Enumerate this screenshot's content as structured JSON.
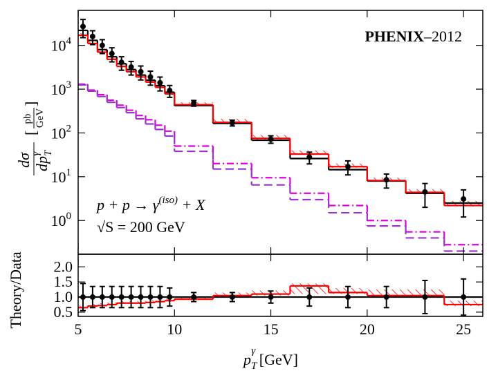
{
  "chart_data": [
    {
      "type": "step",
      "ylog": true,
      "title": {
        "bold": "PHENIX",
        "rest": "–2012"
      },
      "ylabel": {
        "numerator": "dσ",
        "denominator": "dp",
        "sub": "T",
        "sup": "γ",
        "unit_num": "pb",
        "unit_den": "GeV"
      },
      "annotations": [
        {
          "text": "p + p → γ",
          "sup": "(iso)",
          "after": " + X"
        },
        {
          "text": "√S = 200 GeV"
        }
      ],
      "xlim": [
        5,
        26
      ],
      "xticks": [
        5,
        10,
        15,
        20,
        25
      ],
      "ylim": [
        0.17,
        63000
      ],
      "yticks": [
        {
          "value": 1,
          "label": "10",
          "exponent": "0"
        },
        {
          "value": 10,
          "label": "10",
          "exponent": "1"
        },
        {
          "value": 100,
          "label": "10",
          "exponent": "2"
        },
        {
          "value": 1000,
          "label": "10",
          "exponent": "3"
        },
        {
          "value": 10000,
          "label": "10",
          "exponent": "4"
        }
      ],
      "bins": [
        5,
        5.5,
        6,
        6.5,
        7,
        7.5,
        8,
        8.5,
        9,
        9.5,
        10,
        12,
        14,
        16,
        18,
        20,
        22,
        24,
        26
      ],
      "x": [
        5.25,
        5.75,
        6.25,
        6.75,
        7.25,
        7.75,
        8.25,
        8.75,
        9.25,
        9.75,
        11,
        13,
        15,
        17,
        19,
        21,
        23,
        25
      ],
      "band": {
        "color": "#ff0000",
        "low": [
          16000,
          10500,
          6700,
          4600,
          3150,
          2400,
          1800,
          1400,
          1050,
          750,
          420,
          170,
          70,
          32,
          16,
          7.8,
          4.2,
          2.1
        ],
        "high": [
          19000,
          12500,
          8000,
          5500,
          3800,
          2900,
          2200,
          1700,
          1250,
          900,
          500,
          210,
          90,
          40,
          20,
          9.5,
          5.2,
          2.8
        ]
      },
      "steps": [
        {
          "color": "#dd00dd",
          "dash": "dashdot",
          "values": [
            1300,
            950,
            750,
            560,
            430,
            330,
            250,
            200,
            150,
            110,
            50,
            20,
            9.5,
            4.2,
            2.2,
            1.0,
            0.55,
            0.28
          ]
        },
        {
          "color": "#9933cc",
          "dash": "dashed",
          "values": [
            1250,
            900,
            680,
            500,
            380,
            290,
            210,
            160,
            120,
            85,
            38,
            15,
            6.5,
            3,
            1.5,
            0.75,
            0.4,
            0.2
          ]
        },
        {
          "color": "#000000",
          "dash": "solid",
          "values": [
            22000,
            13000,
            8000,
            5500,
            3800,
            2800,
            2100,
            1600,
            1200,
            850,
            420,
            165,
            68,
            26,
            14.5,
            8,
            4.2,
            2.5
          ]
        },
        {
          "color": "#ff0000",
          "dash": "solid",
          "values": [
            17000,
            11000,
            7000,
            4800,
            3300,
            2500,
            1900,
            1450,
            1100,
            780,
            440,
            175,
            75,
            33,
            17,
            8.2,
            4.4,
            2.2
          ]
        }
      ],
      "points": {
        "color": "#000000",
        "values": [
          27000,
          16000,
          10000,
          6500,
          4100,
          3200,
          2500,
          1900,
          1400,
          930,
          480,
          170,
          72,
          28,
          17,
          8.5,
          4.5,
          3.1
        ],
        "errors": [
          12000,
          5600,
          3500,
          2300,
          1400,
          1100,
          880,
          670,
          490,
          280,
          72,
          26,
          14,
          8.4,
          6,
          3,
          2.5,
          1.9
        ]
      }
    },
    {
      "type": "step",
      "ylog": false,
      "ylabel": "Theory/Data",
      "xlabel": {
        "text": "p",
        "sub": "T",
        "sup": "γ",
        "after": " [GeV]"
      },
      "xlim": [
        5,
        26
      ],
      "xticks": [
        5,
        10,
        15,
        20,
        25
      ],
      "ylim": [
        0.36,
        2.42
      ],
      "yticks": [
        {
          "value": 0.5,
          "label": "0.5"
        },
        {
          "value": 1,
          "label": "1.0"
        },
        {
          "value": 1.5,
          "label": "1.5"
        },
        {
          "value": 2,
          "label": "2.0"
        }
      ],
      "bins": [
        5,
        5.5,
        6,
        6.5,
        7,
        7.5,
        8,
        8.5,
        9,
        9.5,
        10,
        12,
        14,
        16,
        18,
        20,
        22,
        24,
        26
      ],
      "x": [
        5.25,
        5.75,
        6.25,
        6.75,
        7.25,
        7.75,
        8.25,
        8.75,
        9.25,
        9.75,
        11,
        13,
        15,
        17,
        19,
        21,
        23,
        25
      ],
      "band": {
        "color": "#ff0000",
        "low": [
          0.62,
          0.67,
          0.7,
          0.72,
          0.77,
          0.77,
          0.77,
          0.8,
          0.82,
          0.85,
          0.9,
          1.0,
          1.05,
          1.1,
          1.1,
          1.0,
          1.0,
          0.7
        ],
        "high": [
          0.72,
          0.77,
          0.8,
          0.82,
          0.87,
          0.87,
          0.87,
          0.9,
          0.92,
          0.95,
          1.0,
          1.15,
          1.22,
          1.45,
          1.3,
          1.25,
          1.25,
          0.88
        ]
      },
      "steps": [
        {
          "color": "#000000",
          "dash": "solid",
          "values": [
            1,
            1,
            1,
            1,
            1,
            1,
            1,
            1,
            1,
            1,
            1,
            1,
            1,
            1,
            1,
            1,
            1,
            1
          ]
        },
        {
          "color": "#ff0000",
          "dash": "solid",
          "values": [
            0.65,
            0.7,
            0.72,
            0.75,
            0.8,
            0.8,
            0.8,
            0.82,
            0.85,
            0.88,
            0.93,
            1.05,
            1.1,
            1.37,
            1.15,
            1.05,
            1.05,
            0.75
          ]
        }
      ],
      "points": {
        "color": "#000000",
        "values": [
          1,
          1,
          1,
          1,
          1,
          1,
          1,
          1,
          1,
          1,
          1,
          1,
          1,
          1,
          1,
          1,
          1,
          1
        ],
        "errors": [
          0.45,
          0.35,
          0.35,
          0.35,
          0.35,
          0.35,
          0.35,
          0.35,
          0.35,
          0.3,
          0.15,
          0.15,
          0.2,
          0.3,
          0.35,
          0.35,
          0.55,
          0.6
        ]
      }
    }
  ]
}
